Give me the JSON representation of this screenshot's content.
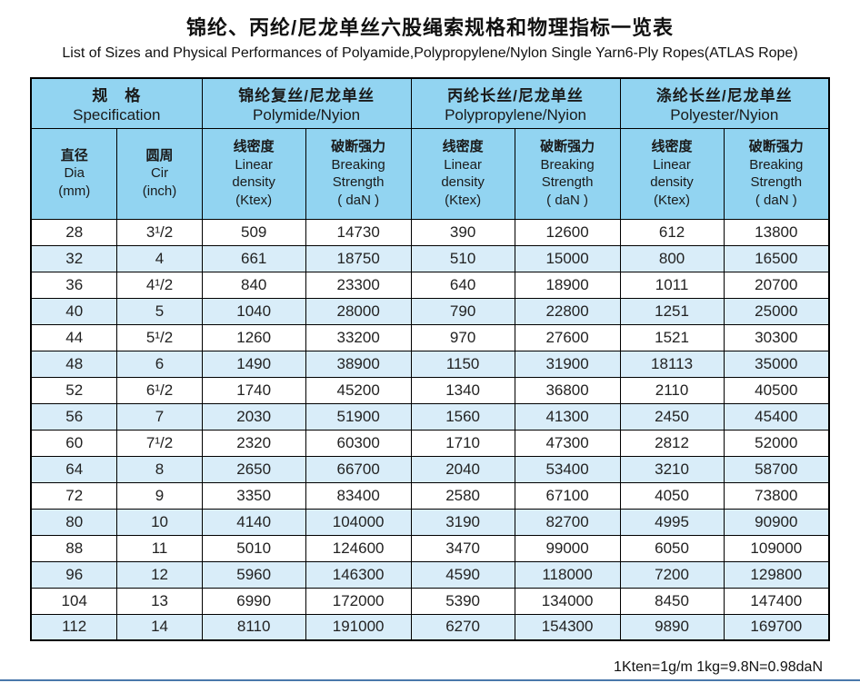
{
  "title": {
    "zh": "锦纶、丙纶/尼龙单丝六股绳索规格和物理指标一览表",
    "en": "List of Sizes and Physical Performances of Polyamide,Polypropylene/Nylon Single Yarn6-Ply Ropes(ATLAS Rope)"
  },
  "table": {
    "groups": [
      {
        "zh": "规　格",
        "en": "Specification"
      },
      {
        "zh": "锦纶复丝/尼龙单丝",
        "en": "Polymide/Nyion"
      },
      {
        "zh": "丙纶长丝/尼龙单丝",
        "en": "Polypropylene/Nyion"
      },
      {
        "zh": "涤纶长丝/尼龙单丝",
        "en": "Polyester/Nyion"
      }
    ],
    "columns": [
      {
        "lines": [
          "直径",
          "Dia",
          "(mm)"
        ]
      },
      {
        "lines": [
          "圆周",
          "Cir",
          "(inch)"
        ]
      },
      {
        "lines": [
          "线密度",
          "Linear",
          "density",
          "(Ktex)"
        ]
      },
      {
        "lines": [
          "破断强力",
          "Breaking",
          "Strength",
          "( daN )"
        ]
      },
      {
        "lines": [
          "线密度",
          "Linear",
          "density",
          "(Ktex)"
        ]
      },
      {
        "lines": [
          "破断强力",
          "Breaking",
          "Strength",
          "( daN )"
        ]
      },
      {
        "lines": [
          "线密度",
          "Linear",
          "density",
          "(Ktex)"
        ]
      },
      {
        "lines": [
          "破断强力",
          "Breaking",
          "Strength",
          "( daN )"
        ]
      }
    ],
    "rows": [
      [
        "28",
        "3¹/2",
        "509",
        "14730",
        "390",
        "12600",
        "612",
        "13800"
      ],
      [
        "32",
        "4",
        "661",
        "18750",
        "510",
        "15000",
        "800",
        "16500"
      ],
      [
        "36",
        "4¹/2",
        "840",
        "23300",
        "640",
        "18900",
        "1011",
        "20700"
      ],
      [
        "40",
        "5",
        "1040",
        "28000",
        "790",
        "22800",
        "1251",
        "25000"
      ],
      [
        "44",
        "5¹/2",
        "1260",
        "33200",
        "970",
        "27600",
        "1521",
        "30300"
      ],
      [
        "48",
        "6",
        "1490",
        "38900",
        "1150",
        "31900",
        "18113",
        "35000"
      ],
      [
        "52",
        "6¹/2",
        "1740",
        "45200",
        "1340",
        "36800",
        "2110",
        "40500"
      ],
      [
        "56",
        "7",
        "2030",
        "51900",
        "1560",
        "41300",
        "2450",
        "45400"
      ],
      [
        "60",
        "7¹/2",
        "2320",
        "60300",
        "1710",
        "47300",
        "2812",
        "52000"
      ],
      [
        "64",
        "8",
        "2650",
        "66700",
        "2040",
        "53400",
        "3210",
        "58700"
      ],
      [
        "72",
        "9",
        "3350",
        "83400",
        "2580",
        "67100",
        "4050",
        "73800"
      ],
      [
        "80",
        "10",
        "4140",
        "104000",
        "3190",
        "82700",
        "4995",
        "90900"
      ],
      [
        "88",
        "11",
        "5010",
        "124600",
        "3470",
        "99000",
        "6050",
        "109000"
      ],
      [
        "96",
        "12",
        "5960",
        "146300",
        "4590",
        "118000",
        "7200",
        "129800"
      ],
      [
        "104",
        "13",
        "6990",
        "172000",
        "5390",
        "134000",
        "8450",
        "147400"
      ],
      [
        "112",
        "14",
        "8110",
        "191000",
        "6270",
        "154300",
        "9890",
        "169700"
      ]
    ]
  },
  "footer": {
    "note": "1Kten=1g/m  1kg=9.8N=0.98daN"
  },
  "colors": {
    "header_bg": "#92d4f1",
    "row_alt": "#d9edf9",
    "rule": "#4a78ab",
    "border": "#000000"
  }
}
